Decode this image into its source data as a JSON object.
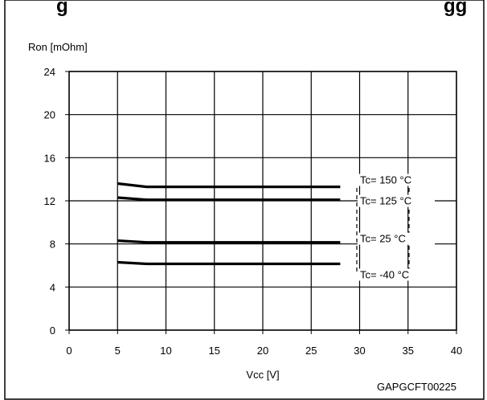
{
  "header_partial_text": "g",
  "header_partial_text_right": "gg",
  "chart_data": {
    "type": "line",
    "xlabel": "Vcc [V]",
    "ylabel": "Ron [mOhm]",
    "xlim": [
      0,
      40
    ],
    "ylim": [
      0,
      24
    ],
    "xticks": [
      0,
      5,
      10,
      15,
      20,
      25,
      30,
      35,
      40
    ],
    "yticks": [
      0,
      4,
      8,
      12,
      16,
      20,
      24
    ],
    "grid": true,
    "series": [
      {
        "name": "Tc= 150 °C",
        "x": [
          5,
          8,
          28
        ],
        "y": [
          13.6,
          13.3,
          13.3
        ]
      },
      {
        "name": "Tc= 125 °C",
        "x": [
          5,
          8,
          28
        ],
        "y": [
          12.3,
          12.1,
          12.1
        ]
      },
      {
        "name": "Tc= 25 °C",
        "x": [
          5,
          8,
          28
        ],
        "y": [
          8.3,
          8.15,
          8.15
        ]
      },
      {
        "name": "Tc= -40 °C",
        "x": [
          5,
          8,
          28
        ],
        "y": [
          6.3,
          6.15,
          6.15
        ]
      }
    ]
  },
  "figure_code": "GAPGCFT00225"
}
